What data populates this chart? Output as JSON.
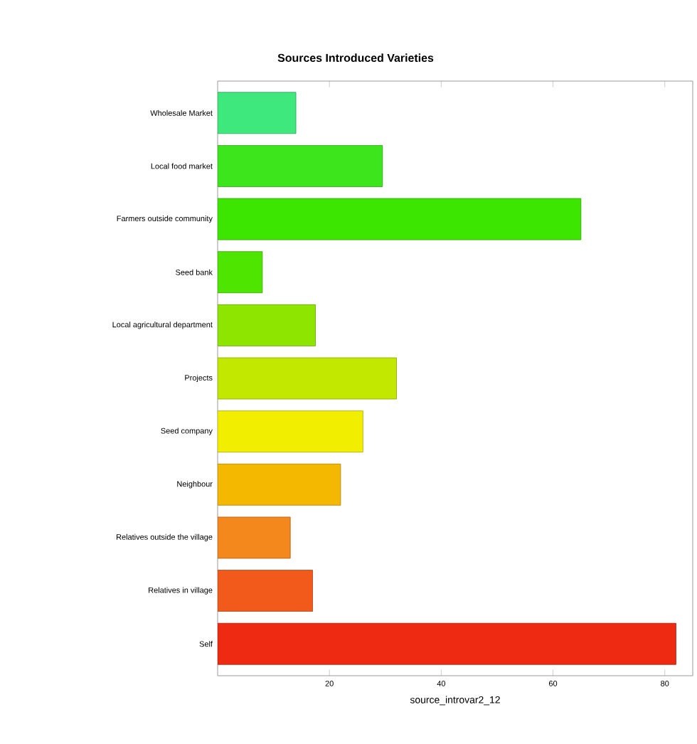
{
  "chart_data": {
    "type": "bar",
    "orientation": "horizontal",
    "title": "Sources Introduced Varieties",
    "xlabel": "source_introvar2_12",
    "categories": [
      "Wholesale Market",
      "Local food market",
      "Farmers outside community",
      "Seed bank",
      "Local agricultural department",
      "Projects",
      "Seed company",
      "Neighbour",
      "Relatives outside the village",
      "Relatives in village",
      "Self"
    ],
    "values": [
      14,
      29.5,
      65,
      8,
      17.5,
      32,
      26,
      22,
      13,
      17,
      82
    ],
    "colors": [
      "#3ee87c",
      "#3de61c",
      "#3de600",
      "#4ee600",
      "#8ee600",
      "#c2e800",
      "#f2ee00",
      "#f5b800",
      "#f5881c",
      "#f25a1c",
      "#ee2a12"
    ],
    "xlim": [
      0,
      85
    ],
    "xticks": [
      20,
      40,
      60,
      80
    ],
    "grid": false
  }
}
